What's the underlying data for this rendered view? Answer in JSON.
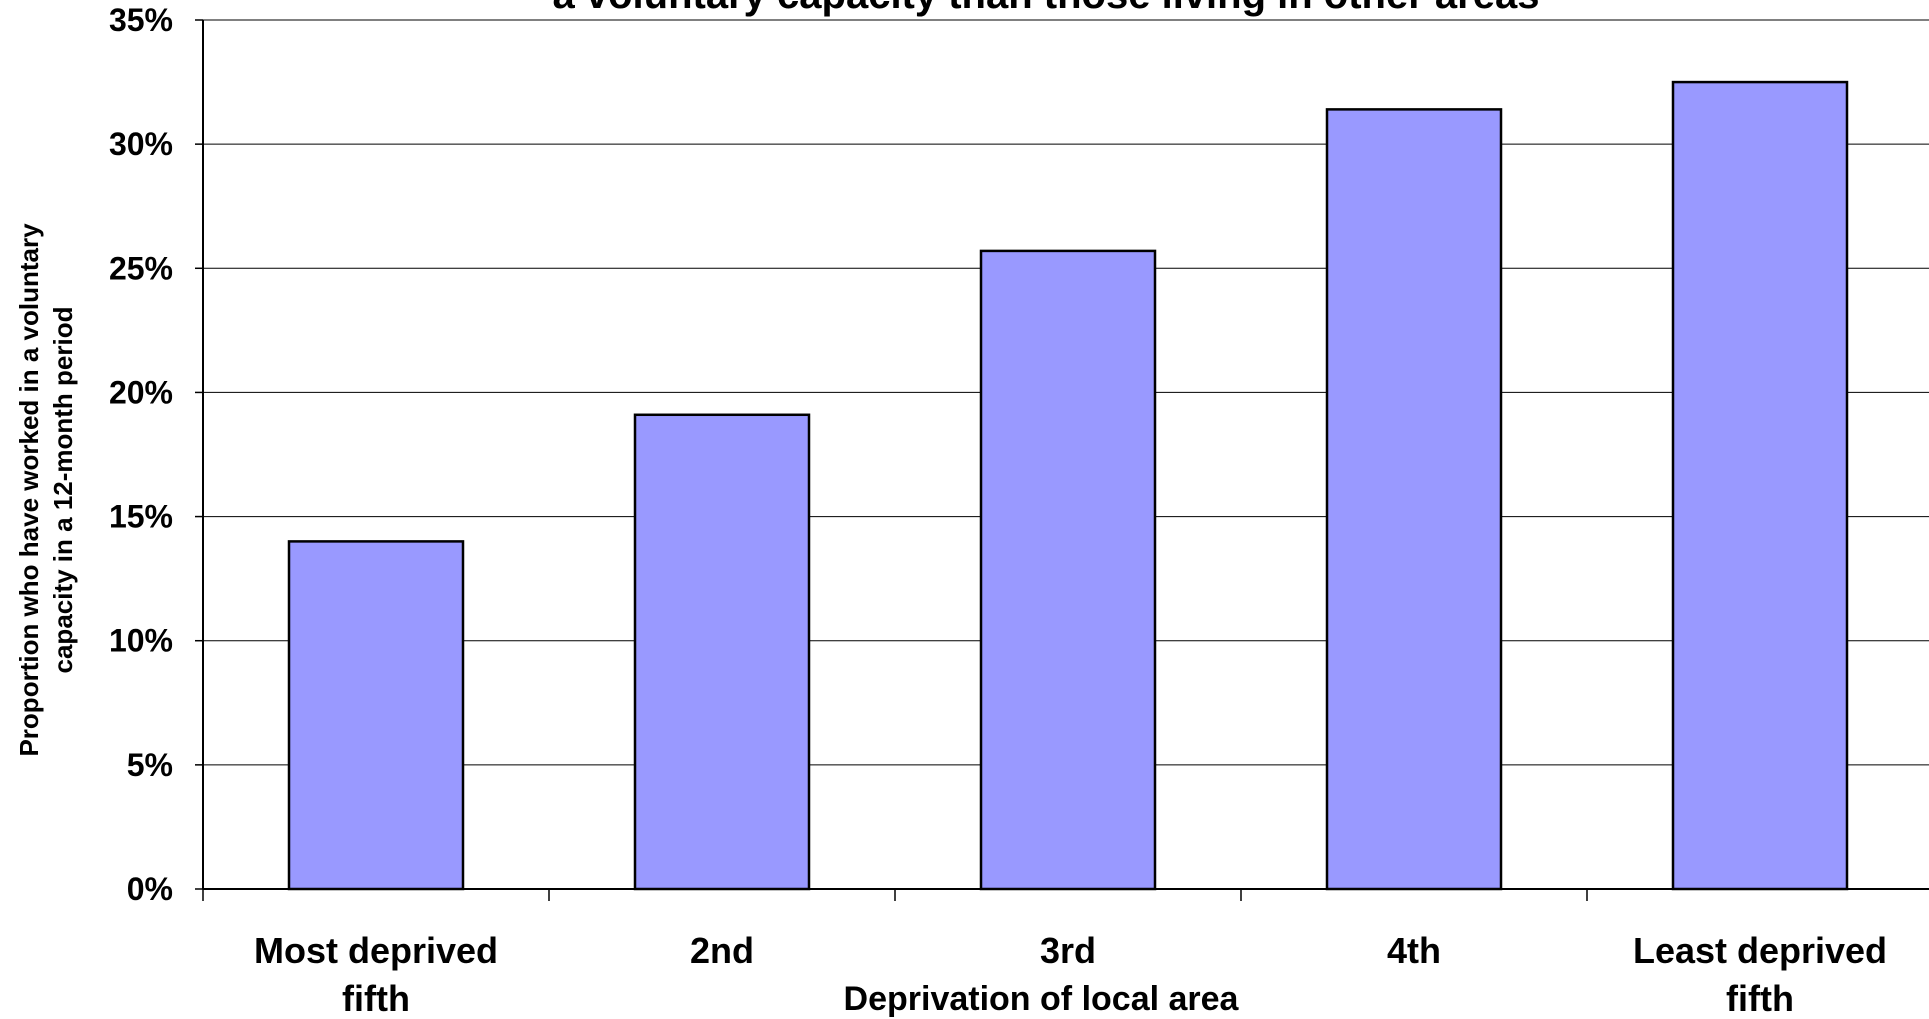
{
  "chart_data": {
    "type": "bar",
    "title": "a voluntary capacity than those living in other areas",
    "xlabel": "Deprivation of local area",
    "ylabel_lines": [
      "Proportion who have worked in a voluntary",
      "capacity in a 12-month period"
    ],
    "categories": [
      [
        "Most deprived",
        "fifth"
      ],
      [
        "2nd"
      ],
      [
        "3rd"
      ],
      [
        "4th"
      ],
      [
        "Least deprived",
        "fifth"
      ]
    ],
    "values": [
      14.0,
      19.1,
      25.7,
      31.4,
      32.5
    ],
    "ylim": [
      0,
      35
    ],
    "yticks": [
      "0%",
      "5%",
      "10%",
      "15%",
      "20%",
      "25%",
      "30%",
      "35%"
    ],
    "grid": true,
    "bar_color": "#9999ff",
    "bar_stroke": "#000000"
  }
}
